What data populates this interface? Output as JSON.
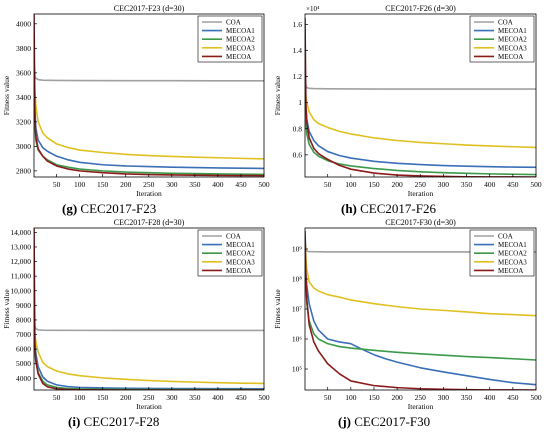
{
  "figure": {
    "captions": [
      {
        "letter": "(g)",
        "text": " CEC2017-F23"
      },
      {
        "letter": "(h)",
        "text": " CEC2017-F26"
      },
      {
        "letter": "(i)",
        "text": " CEC2017-F28"
      },
      {
        "letter": "(j)",
        "text": " CEC2017-F30"
      }
    ]
  },
  "chart_data": [
    {
      "type": "line",
      "title": "CEC2017-F23 (d=30)",
      "xlabel": "Iteration",
      "ylabel": "Fitness value",
      "xlim": [
        1,
        500
      ],
      "ylim": [
        2750,
        4080
      ],
      "xticks": [
        50,
        100,
        150,
        200,
        250,
        300,
        350,
        400,
        450,
        500
      ],
      "yticks": [
        2800,
        3000,
        3200,
        3400,
        3600,
        3800,
        4000
      ],
      "ytick_labels": [
        "2800",
        "3000",
        "3200",
        "3400",
        "3600",
        "3800",
        "4000"
      ],
      "yscale": "linear",
      "legend": "top-right",
      "series": [
        {
          "name": "COA",
          "color": "#a0a0a0",
          "x": [
            1,
            3,
            5,
            10,
            20,
            50,
            100,
            200,
            300,
            400,
            500
          ],
          "y": [
            3700,
            3580,
            3555,
            3545,
            3540,
            3538,
            3537,
            3536,
            3536,
            3535,
            3535
          ]
        },
        {
          "name": "MECOA1",
          "color": "#3a6fb8",
          "x": [
            1,
            3,
            5,
            10,
            20,
            30,
            50,
            75,
            100,
            150,
            200,
            250,
            300,
            350,
            400,
            450,
            500
          ],
          "y": [
            3550,
            3300,
            3150,
            3050,
            2990,
            2960,
            2920,
            2890,
            2870,
            2850,
            2840,
            2835,
            2830,
            2827,
            2824,
            2822,
            2820
          ]
        },
        {
          "name": "MECOA2",
          "color": "#3a9a4a",
          "x": [
            1,
            3,
            5,
            10,
            20,
            30,
            50,
            75,
            100,
            150,
            200,
            250,
            300,
            350,
            400,
            450,
            500
          ],
          "y": [
            3500,
            3180,
            3050,
            2970,
            2920,
            2890,
            2850,
            2830,
            2815,
            2800,
            2790,
            2785,
            2780,
            2778,
            2775,
            2773,
            2771
          ]
        },
        {
          "name": "MECOA3",
          "color": "#e0c020",
          "x": [
            1,
            3,
            5,
            10,
            20,
            30,
            50,
            75,
            100,
            150,
            200,
            250,
            300,
            350,
            400,
            450,
            500
          ],
          "y": [
            3700,
            3450,
            3330,
            3200,
            3110,
            3070,
            3020,
            2990,
            2970,
            2950,
            2935,
            2925,
            2918,
            2912,
            2907,
            2902,
            2898
          ]
        },
        {
          "name": "MECOA",
          "color": "#8b1a1a",
          "x": [
            1,
            3,
            5,
            10,
            20,
            30,
            50,
            75,
            100,
            150,
            200,
            250,
            300,
            350,
            400,
            450,
            500
          ],
          "y": [
            4080,
            3250,
            3080,
            2980,
            2920,
            2880,
            2840,
            2815,
            2800,
            2785,
            2775,
            2770,
            2767,
            2765,
            2763,
            2762,
            2761
          ]
        }
      ]
    },
    {
      "type": "line",
      "title": "CEC2017-F26 (d=30)",
      "xlabel": "Iteration",
      "ylabel": "Fitness value",
      "xlim": [
        1,
        500
      ],
      "ylim": [
        4300,
        16800
      ],
      "xticks": [
        50,
        100,
        150,
        200,
        250,
        300,
        350,
        400,
        450,
        500
      ],
      "yticks": [
        6000,
        8000,
        10000,
        12000,
        14000,
        16000
      ],
      "ytick_labels": [
        "0.6",
        "0.8",
        "1",
        "1.2",
        "1.4",
        "1.6"
      ],
      "scale_label": "×10⁴",
      "yscale": "linear",
      "legend": "top-right",
      "series": [
        {
          "name": "COA",
          "color": "#a0a0a0",
          "x": [
            1,
            3,
            5,
            10,
            20,
            50,
            100,
            200,
            300,
            400,
            500
          ],
          "y": [
            12000,
            11300,
            11150,
            11100,
            11080,
            11060,
            11050,
            11045,
            11040,
            11040,
            11040
          ]
        },
        {
          "name": "MECOA1",
          "color": "#3a6fb8",
          "x": [
            1,
            3,
            5,
            10,
            20,
            30,
            50,
            75,
            100,
            150,
            200,
            250,
            300,
            350,
            400,
            450,
            500
          ],
          "y": [
            11800,
            9500,
            8700,
            7800,
            7100,
            6700,
            6250,
            5950,
            5750,
            5500,
            5350,
            5250,
            5180,
            5130,
            5090,
            5060,
            5040
          ]
        },
        {
          "name": "MECOA2",
          "color": "#3a9a4a",
          "x": [
            1,
            3,
            5,
            10,
            20,
            30,
            50,
            75,
            100,
            150,
            200,
            250,
            300,
            350,
            400,
            450,
            500
          ],
          "y": [
            11000,
            8500,
            7600,
            6800,
            6200,
            5900,
            5550,
            5300,
            5150,
            4950,
            4800,
            4700,
            4630,
            4580,
            4540,
            4510,
            4490
          ]
        },
        {
          "name": "MECOA3",
          "color": "#e0c020",
          "x": [
            1,
            3,
            5,
            10,
            20,
            30,
            50,
            75,
            100,
            150,
            200,
            250,
            300,
            350,
            400,
            450,
            500
          ],
          "y": [
            11500,
            10500,
            10000,
            9300,
            8700,
            8400,
            8100,
            7800,
            7600,
            7300,
            7100,
            6950,
            6850,
            6750,
            6680,
            6620,
            6570
          ]
        },
        {
          "name": "MECOA",
          "color": "#8b1a1a",
          "x": [
            1,
            3,
            5,
            10,
            20,
            30,
            50,
            75,
            100,
            150,
            200,
            250,
            300,
            350,
            400,
            450,
            500
          ],
          "y": [
            16500,
            9800,
            8500,
            7300,
            6500,
            6100,
            5650,
            5200,
            4900,
            4600,
            4450,
            4380,
            4340,
            4320,
            4310,
            4305,
            4300
          ]
        }
      ]
    },
    {
      "type": "line",
      "title": "CEC2017-F28 (d=30)",
      "xlabel": "Iteration",
      "ylabel": "Fitness value",
      "xlim": [
        1,
        500
      ],
      "ylim": [
        3200,
        14300
      ],
      "xticks": [
        50,
        100,
        150,
        200,
        250,
        300,
        350,
        400,
        450,
        500
      ],
      "yticks": [
        4000,
        5000,
        6000,
        7000,
        8000,
        9000,
        10000,
        11000,
        12000,
        13000,
        14000
      ],
      "ytick_labels": [
        "4000",
        "5000",
        "6000",
        "7000",
        "8000",
        "9000",
        "10,000",
        "11,000",
        "12,000",
        "13,000",
        "14,000"
      ],
      "yscale": "linear",
      "legend": "top-right",
      "series": [
        {
          "name": "COA",
          "color": "#a0a0a0",
          "x": [
            1,
            3,
            5,
            10,
            20,
            50,
            100,
            200,
            300,
            400,
            500
          ],
          "y": [
            8800,
            7600,
            7400,
            7320,
            7300,
            7290,
            7285,
            7283,
            7282,
            7281,
            7280
          ]
        },
        {
          "name": "MECOA1",
          "color": "#3a6fb8",
          "x": [
            1,
            3,
            5,
            10,
            20,
            30,
            50,
            75,
            100,
            150,
            200,
            250,
            300,
            350,
            400,
            450,
            500
          ],
          "y": [
            8000,
            6500,
            5700,
            4800,
            4100,
            3800,
            3550,
            3430,
            3380,
            3340,
            3320,
            3310,
            3300,
            3295,
            3290,
            3287,
            3285
          ]
        },
        {
          "name": "MECOA2",
          "color": "#3a9a4a",
          "x": [
            1,
            3,
            5,
            10,
            20,
            30,
            50,
            75,
            100,
            150,
            200,
            250,
            300,
            350,
            400,
            450,
            500
          ],
          "y": [
            7500,
            6000,
            5200,
            4400,
            3800,
            3550,
            3380,
            3300,
            3270,
            3250,
            3240,
            3235,
            3232,
            3230,
            3228,
            3227,
            3226
          ]
        },
        {
          "name": "MECOA3",
          "color": "#e0c020",
          "x": [
            1,
            3,
            5,
            10,
            20,
            30,
            50,
            75,
            100,
            150,
            200,
            250,
            300,
            350,
            400,
            450,
            500
          ],
          "y": [
            7800,
            7000,
            6500,
            5800,
            5100,
            4800,
            4500,
            4300,
            4180,
            4030,
            3930,
            3850,
            3790,
            3740,
            3700,
            3670,
            3650
          ]
        },
        {
          "name": "MECOA",
          "color": "#8b1a1a",
          "x": [
            1,
            3,
            5,
            10,
            20,
            30,
            50,
            75,
            100,
            150,
            200,
            250,
            300,
            350,
            400,
            450,
            500
          ],
          "y": [
            14300,
            6200,
            5200,
            4300,
            3650,
            3420,
            3280,
            3230,
            3215,
            3205,
            3200,
            3200,
            3200,
            3200,
            3200,
            3200,
            3200
          ]
        }
      ]
    },
    {
      "type": "line",
      "title": "CEC2017-F30 (d=30)",
      "xlabel": "Iteration",
      "ylabel": "Fitness value",
      "xlim": [
        1,
        500
      ],
      "ylim": [
        20000,
        5000000000
      ],
      "xticks": [
        50,
        100,
        150,
        200,
        250,
        300,
        350,
        400,
        450,
        500
      ],
      "yticks": [
        100000,
        1000000,
        10000000,
        100000000,
        1000000000
      ],
      "ytick_labels": [
        "10⁵",
        "10⁶",
        "10⁷",
        "10⁸",
        "10⁹"
      ],
      "yscale": "log",
      "legend": "top-right",
      "series": [
        {
          "name": "COA",
          "color": "#a0a0a0",
          "x": [
            1,
            3,
            5,
            10,
            20,
            50,
            100,
            200,
            300,
            400,
            500
          ],
          "y": [
            3000000000,
            1000000000,
            850000000,
            820000000,
            810000000,
            800000000,
            800000000,
            800000000,
            800000000,
            800000000,
            800000000
          ]
        },
        {
          "name": "MECOA1",
          "color": "#3a6fb8",
          "x": [
            1,
            3,
            5,
            10,
            20,
            30,
            50,
            75,
            100,
            125,
            150,
            175,
            200,
            250,
            300,
            350,
            400,
            450,
            500
          ],
          "y": [
            1000000000,
            150000000,
            60000000,
            15000000,
            4000000,
            2000000,
            1000000,
            800000,
            700000,
            450000,
            300000,
            220000,
            170000,
            110000,
            80000,
            60000,
            45000,
            35000,
            30000
          ]
        },
        {
          "name": "MECOA2",
          "color": "#3a9a4a",
          "x": [
            1,
            3,
            5,
            10,
            20,
            30,
            50,
            75,
            100,
            150,
            200,
            250,
            300,
            350,
            400,
            450,
            500
          ],
          "y": [
            800000000,
            50000000,
            15000000,
            4000000,
            1500000,
            1000000,
            700000,
            560000,
            500000,
            420000,
            360000,
            320000,
            290000,
            260000,
            240000,
            220000,
            200000
          ]
        },
        {
          "name": "MECOA3",
          "color": "#e0c020",
          "x": [
            1,
            3,
            5,
            10,
            20,
            30,
            50,
            75,
            100,
            150,
            200,
            250,
            300,
            350,
            400,
            450,
            500
          ],
          "y": [
            2000000000,
            500000000,
            200000000,
            80000000,
            50000000,
            40000000,
            30000000,
            25000000,
            20000000,
            15000000,
            12000000,
            10000000,
            9000000,
            8000000,
            7000000,
            6500000,
            6000000
          ]
        },
        {
          "name": "MECOA",
          "color": "#8b1a1a",
          "x": [
            1,
            3,
            5,
            10,
            20,
            30,
            50,
            75,
            100,
            150,
            200,
            250,
            300,
            350,
            400,
            450,
            500
          ],
          "y": [
            4000000000,
            100000000,
            20000000,
            3000000,
            800000,
            400000,
            150000,
            70000,
            40000,
            28000,
            24000,
            22000,
            21000,
            20500,
            20200,
            20100,
            20000
          ]
        }
      ]
    }
  ]
}
